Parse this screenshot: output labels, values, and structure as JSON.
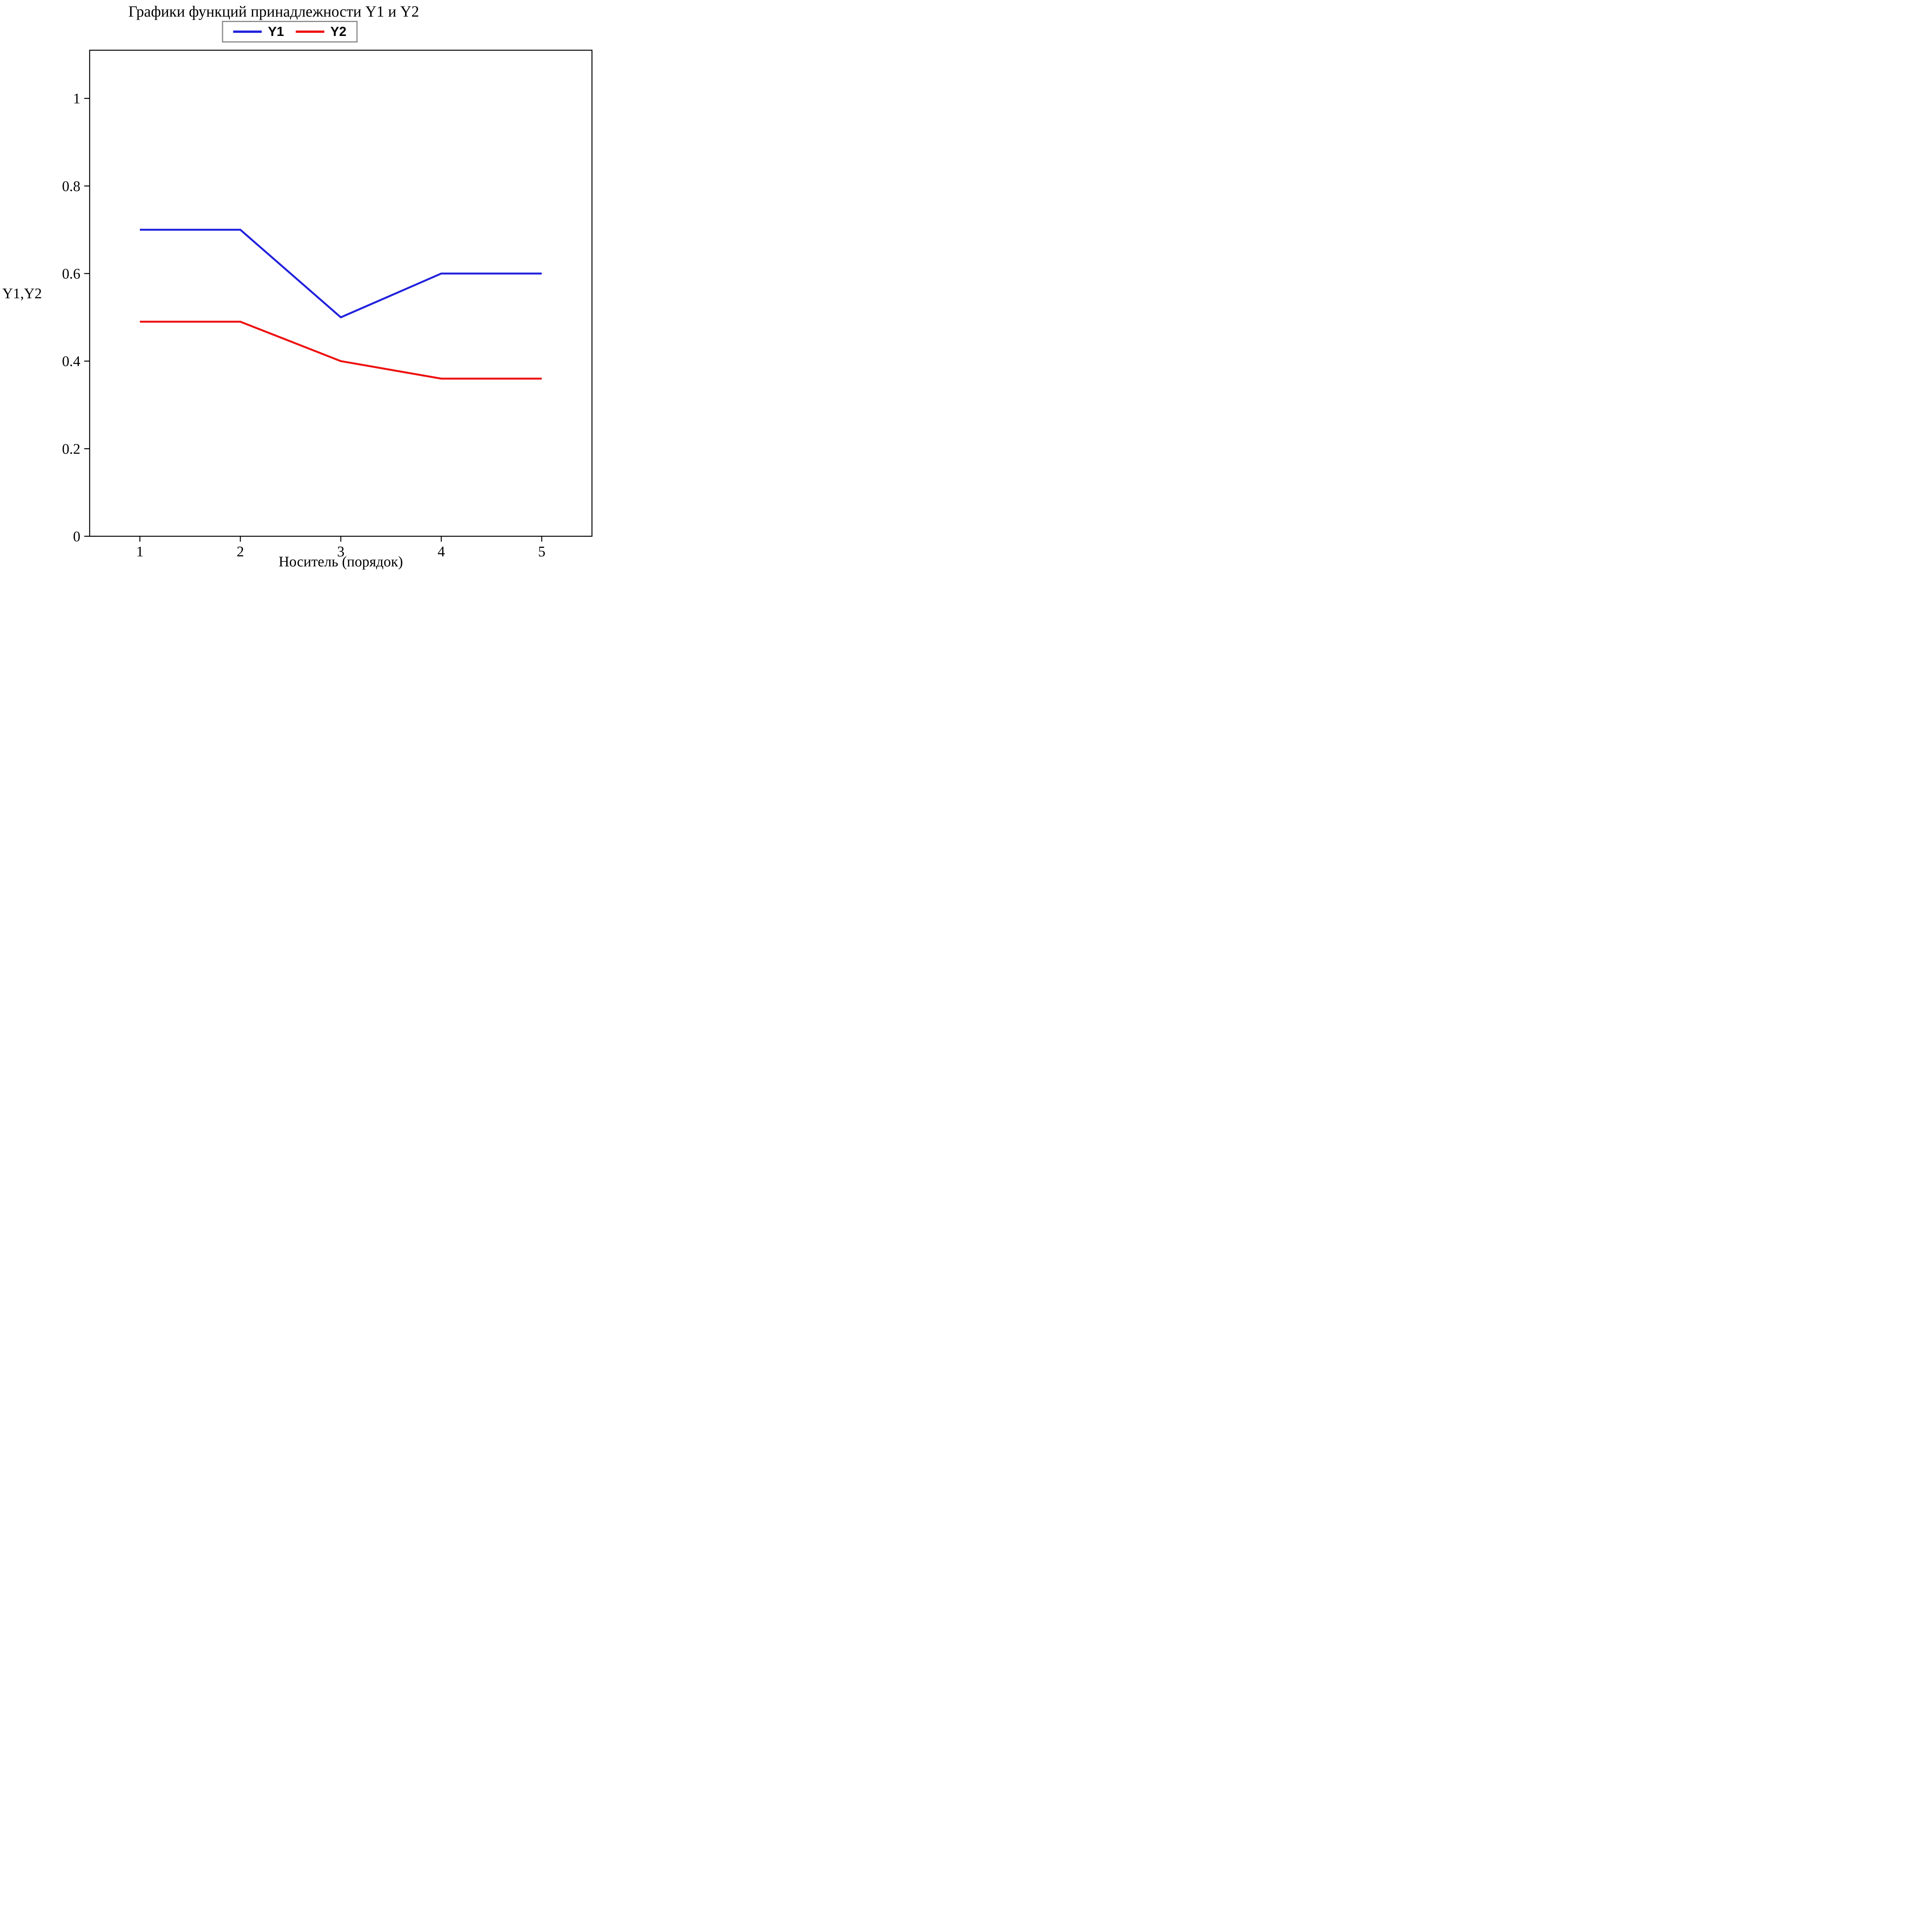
{
  "figure": {
    "background": "#ffffff",
    "frame_color": "#000000"
  },
  "chart_data": {
    "type": "line",
    "title": "Графики функций принадлежности Y1 и Y2",
    "xlabel": "Носитель (порядок)",
    "ylabel": "Y1,Y2",
    "x": [
      1,
      2,
      3,
      4,
      5
    ],
    "series": [
      {
        "name": "Y1",
        "color": "#2222dd",
        "values": [
          0.7,
          0.7,
          0.5,
          0.6,
          0.6
        ]
      },
      {
        "name": "Y2",
        "color": "#ee1111",
        "values": [
          0.49,
          0.49,
          0.4,
          0.36,
          0.36
        ]
      }
    ],
    "xlim": [
      0.5,
      5.5
    ],
    "ylim": [
      0,
      1.11
    ],
    "xticks": [
      1,
      2,
      3,
      4,
      5
    ],
    "yticks": [
      0,
      0.2,
      0.4,
      0.6,
      0.8,
      1
    ],
    "legend_position": "top",
    "legend_entries": [
      "Y1",
      "Y2"
    ],
    "grid": false
  }
}
